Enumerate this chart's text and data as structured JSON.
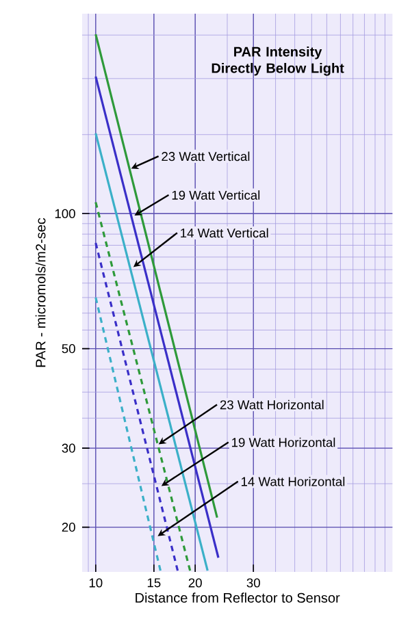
{
  "chart_data": {
    "type": "line",
    "title": "PAR Intensity Directly Below Light",
    "xlabel": "Distance from Reflector to Sensor",
    "ylabel": "PAR - micromols/m2-sec",
    "log": "xy",
    "grid": true,
    "marker": "none",
    "xlim": [
      9.1,
      79
    ],
    "ylim": [
      15.9,
      279
    ],
    "xticks": [
      10,
      15,
      20,
      30
    ],
    "yticks": [
      20,
      30,
      50,
      100
    ],
    "series": [
      {
        "color": "#2e9a3a",
        "line_style": "solid",
        "x": [
          10,
          23.3
        ],
        "values": [
          251,
          21
        ]
      },
      {
        "color": "#3a2fc8",
        "line_style": "solid",
        "x": [
          10,
          23.5
        ],
        "values": [
          202,
          17.1
        ]
      },
      {
        "color": "#3bb0c8",
        "line_style": "solid",
        "x": [
          10,
          21.8
        ],
        "values": [
          151,
          16
        ]
      },
      {
        "color": "#2e9a3a",
        "line_style": "dashed",
        "x": [
          10,
          19.3
        ],
        "values": [
          106,
          16
        ]
      },
      {
        "color": "#3a2fc8",
        "line_style": "dashed",
        "x": [
          10,
          17.7
        ],
        "values": [
          86,
          16
        ]
      },
      {
        "color": "#3bb0c8",
        "line_style": "dashed",
        "x": [
          10,
          15.7
        ],
        "values": [
          65,
          16
        ]
      }
    ],
    "annotations": [
      {
        "text": "23  Watt Vertical",
        "x": 12.8,
        "y": 126
      },
      {
        "text": "19 Watt Vertical",
        "x": 13.1,
        "y": 99
      },
      {
        "text": "14 Watt Vertical",
        "x": 13,
        "y": 76
      },
      {
        "text": "23  Watt Horizontal",
        "x": 15.5,
        "y": 30.6
      },
      {
        "text": "19 Watt Horizontal",
        "x": 15.8,
        "y": 24.7
      },
      {
        "text": "14 Watt Horizontal",
        "x": 15.4,
        "y": 19.1
      }
    ]
  }
}
